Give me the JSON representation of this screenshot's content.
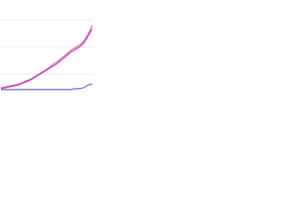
{
  "chart_data": {
    "type": "line",
    "x": [
      0,
      1,
      2,
      3,
      4,
      5,
      6,
      7,
      8,
      9,
      10,
      11,
      12,
      13,
      14,
      15,
      16,
      17,
      18,
      19,
      20,
      21
    ],
    "xlim": [
      0,
      21
    ],
    "ylim": [
      0,
      100
    ],
    "yticks": [
      20,
      50,
      80
    ],
    "grid": true,
    "series": [
      {
        "color": "#f06aa8",
        "values": [
          5,
          6,
          7,
          8,
          9,
          11,
          13,
          15,
          18,
          21,
          24,
          27,
          31,
          34,
          38,
          42,
          46,
          49,
          52,
          56,
          64,
          74
        ]
      },
      {
        "color": "#b04ec6",
        "values": [
          4,
          5,
          6,
          7,
          8,
          10,
          12,
          14,
          17,
          20,
          23,
          26,
          29,
          32,
          36,
          40,
          44,
          47,
          50,
          54,
          62,
          70
        ]
      },
      {
        "color": "#6a6fd8",
        "values": [
          3,
          3,
          3,
          3,
          3,
          3,
          3,
          3,
          3,
          3,
          3,
          3,
          3,
          3,
          3,
          3,
          3,
          4,
          4,
          5,
          8,
          9
        ]
      }
    ]
  }
}
